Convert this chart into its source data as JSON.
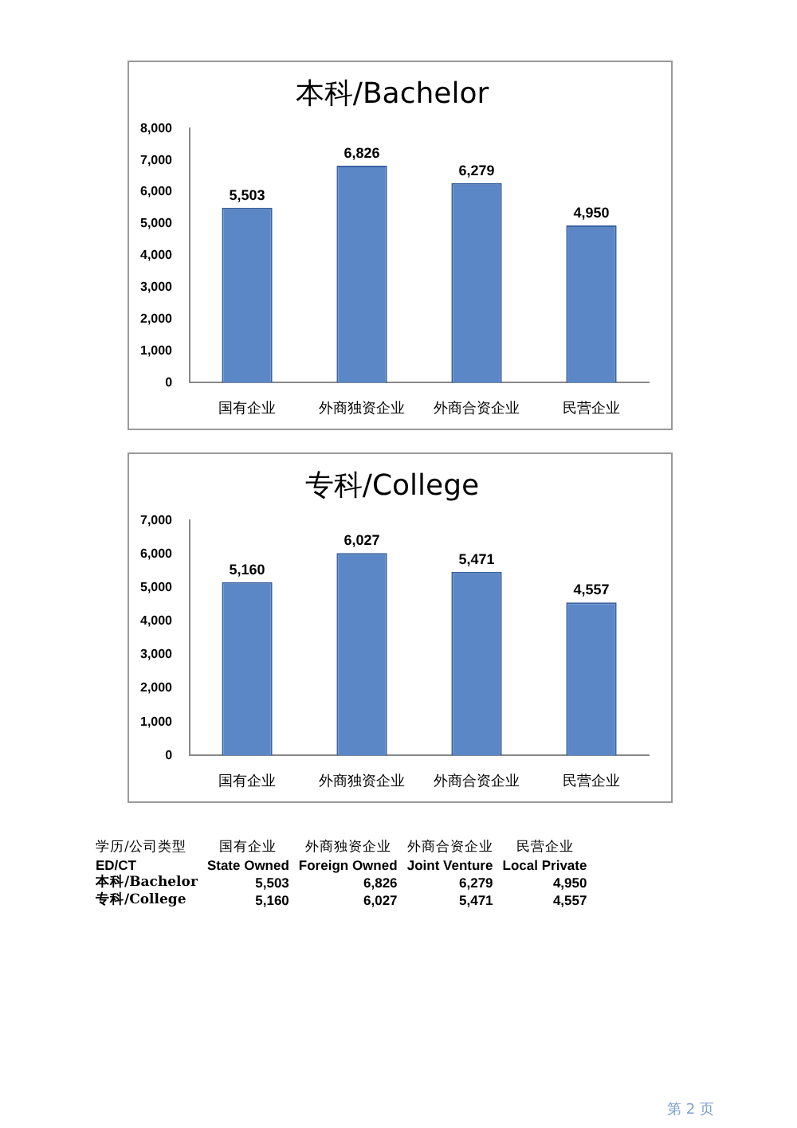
{
  "chart_data": [
    {
      "type": "bar",
      "title": "本科/Bachelor",
      "categories": [
        "国有企业",
        "外商独资企业",
        "外商合资企业",
        "民营企业"
      ],
      "values": [
        5503,
        6826,
        6279,
        4950
      ],
      "value_labels": [
        "5,503",
        "6,826",
        "6,279",
        "4,950"
      ],
      "color": "#5b87c7",
      "ylim": [
        0,
        8000
      ],
      "yticks": [
        {
          "value": 0,
          "label": "0"
        },
        {
          "value": 1000,
          "label": "1,000"
        },
        {
          "value": 2000,
          "label": "2,000"
        },
        {
          "value": 3000,
          "label": "3,000"
        },
        {
          "value": 4000,
          "label": "4,000"
        },
        {
          "value": 5000,
          "label": "5,000"
        },
        {
          "value": 6000,
          "label": "6,000"
        },
        {
          "value": 7000,
          "label": "7,000"
        },
        {
          "value": 8000,
          "label": "8,000"
        }
      ],
      "grid": false,
      "legend": false
    },
    {
      "type": "bar",
      "title": "专科/College",
      "categories": [
        "国有企业",
        "外商独资企业",
        "外商合资企业",
        "民营企业"
      ],
      "values": [
        5160,
        6027,
        5471,
        4557
      ],
      "value_labels": [
        "5,160",
        "6,027",
        "5,471",
        "4,557"
      ],
      "color": "#5b87c7",
      "ylim": [
        0,
        7000
      ],
      "yticks": [
        {
          "value": 0,
          "label": "0"
        },
        {
          "value": 1000,
          "label": "1,000"
        },
        {
          "value": 2000,
          "label": "2,000"
        },
        {
          "value": 3000,
          "label": "3,000"
        },
        {
          "value": 4000,
          "label": "4,000"
        },
        {
          "value": 5000,
          "label": "5,000"
        },
        {
          "value": 6000,
          "label": "6,000"
        },
        {
          "value": 7000,
          "label": "7,000"
        }
      ],
      "grid": false,
      "legend": false
    },
    {
      "type": "other",
      "annotations": [
        "学历/公司类型",
        "国有企业",
        "外商独资企业",
        "外商合资企业",
        "民营企业",
        "ED/CT",
        "State Owned",
        "Foreign Owned",
        "Joint Venture",
        "Local Private",
        "本科/Bachelor",
        "5,503",
        "6,826",
        "6,279",
        "4,950",
        "专科/College",
        "5,160",
        "6,027",
        "5,471",
        "4,557",
        "第 2 页"
      ]
    }
  ]
}
